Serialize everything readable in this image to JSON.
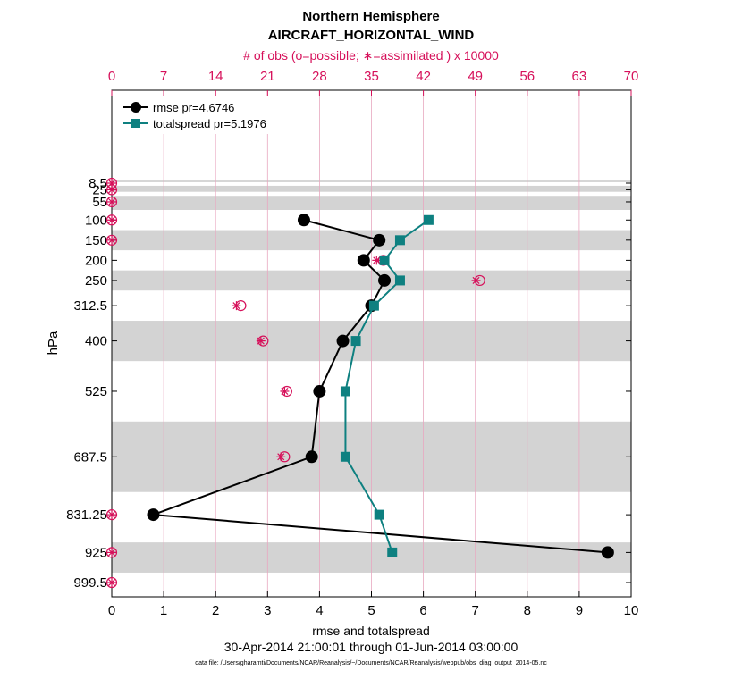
{
  "chart_data": {
    "type": "line",
    "title": "Northern Hemisphere",
    "subtitle": "AIRCRAFT_HORIZONTAL_WIND",
    "xlabel": "rmse and totalspread",
    "ylabel": "hPa",
    "top_xlabel": "# of obs (o=possible; ∗=assimilated ) x 10000",
    "xlim": [
      0,
      10
    ],
    "top_xlim": [
      0,
      70
    ],
    "x_ticks": [
      "0",
      "1",
      "2",
      "3",
      "4",
      "5",
      "6",
      "7",
      "8",
      "9",
      "10"
    ],
    "top_x_ticks": [
      "0",
      "7",
      "14",
      "21",
      "28",
      "35",
      "42",
      "49",
      "56",
      "63",
      "70"
    ],
    "y_tick_labels": [
      "8.5",
      "25",
      "55",
      "100",
      "150",
      "200",
      "250",
      "312.5",
      "400",
      "525",
      "687.5",
      "831.25",
      "925",
      "999.5"
    ],
    "levels": [
      8.5,
      25,
      55,
      100,
      150,
      200,
      250,
      312.5,
      400,
      525,
      687.5,
      831.25,
      925,
      999.5
    ],
    "shaded_bands_hPa": [
      [
        15,
        30
      ],
      [
        40,
        75
      ],
      [
        125,
        175
      ],
      [
        225,
        275
      ],
      [
        350,
        450
      ],
      [
        600,
        775
      ],
      [
        900,
        975
      ]
    ],
    "series": [
      {
        "name": "rmse",
        "legend": "rmse pr=4.6746",
        "color": "#000000",
        "marker": "circle",
        "levels": [
          100,
          150,
          200,
          250,
          312.5,
          400,
          525,
          687.5,
          831.25,
          925
        ],
        "values": [
          3.7,
          5.15,
          4.85,
          5.25,
          5.0,
          4.45,
          4.0,
          3.85,
          0.8,
          9.55
        ]
      },
      {
        "name": "totalspread",
        "legend": "totalspread pr=5.1976",
        "color": "#0e8080",
        "marker": "square",
        "levels": [
          100,
          150,
          200,
          250,
          312.5,
          400,
          525,
          687.5,
          831.25,
          925
        ],
        "values": [
          6.1,
          5.55,
          5.25,
          5.55,
          5.05,
          4.7,
          4.5,
          4.5,
          5.15,
          5.4
        ]
      }
    ],
    "obs_counts": {
      "color": "#d6105a",
      "levels": [
        8.5,
        25,
        55,
        100,
        150,
        200,
        250,
        312.5,
        400,
        525,
        687.5,
        831.25,
        925,
        999.5
      ],
      "possible": [
        0,
        0,
        0,
        0,
        0,
        36.6,
        49.6,
        17.4,
        20.4,
        23.6,
        23.3,
        0,
        0,
        0
      ],
      "assimilated": [
        0,
        0,
        0,
        0,
        0,
        35.7,
        49.1,
        16.8,
        20.1,
        23.3,
        22.8,
        0,
        0,
        0
      ]
    },
    "legend_position": "top-left",
    "grid": true
  },
  "footer": {
    "date_range": "30-Apr-2014 21:00:01 through 01-Jun-2014 03:00:00",
    "data_file": "data file: /Users/gharamti/Documents/NCAR/Reanalysis/~/Documents/NCAR/Reanalysis/webpub/obs_diag_output_2014-05.nc"
  }
}
